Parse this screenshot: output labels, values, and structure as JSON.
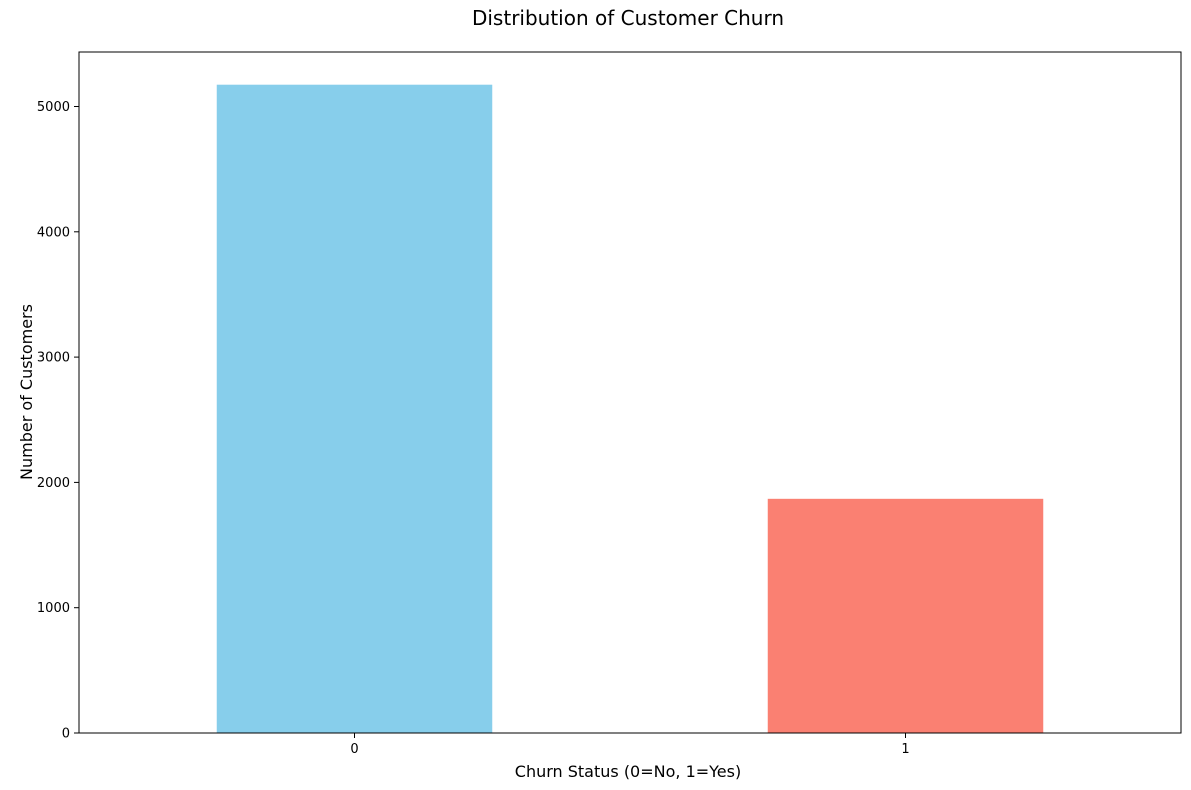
{
  "chart_data": {
    "type": "bar",
    "title": "Distribution of Customer Churn",
    "xlabel": "Churn Status (0=No, 1=Yes)",
    "ylabel": "Number of Customers",
    "categories": [
      "0",
      "1"
    ],
    "values": [
      5174,
      1869
    ],
    "colors": [
      "#87ceeb",
      "#fa8072"
    ],
    "ylim": [
      0,
      5435
    ],
    "yticks": [
      0,
      1000,
      2000,
      3000,
      4000,
      5000
    ],
    "grid": false,
    "legend": "none"
  }
}
